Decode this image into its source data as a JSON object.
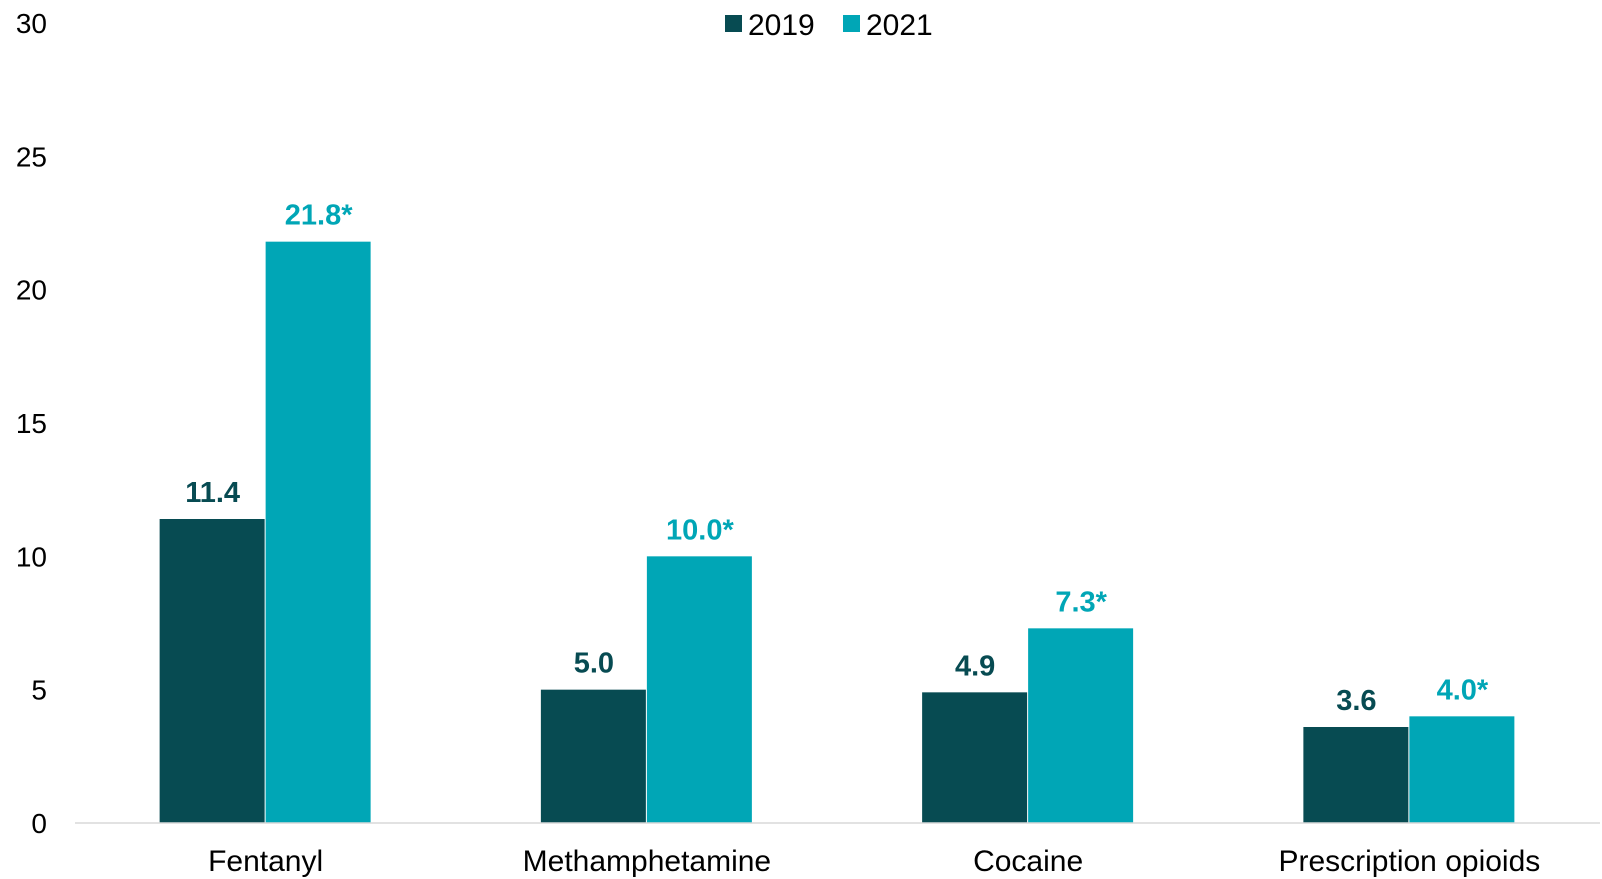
{
  "chart_data": {
    "type": "bar",
    "categories": [
      "Fentanyl",
      "Methamphetamine",
      "Cocaine",
      "Prescription opioids"
    ],
    "series": [
      {
        "name": "2019",
        "color": "#074b52",
        "values": [
          11.4,
          5.0,
          4.9,
          3.6
        ],
        "labels": [
          "11.4",
          "5.0",
          "4.9",
          "3.6"
        ]
      },
      {
        "name": "2021",
        "color": "#00a6b6",
        "values": [
          21.8,
          10.0,
          7.3,
          4.0
        ],
        "labels": [
          "21.8*",
          "10.0*",
          "7.3*",
          "4.0*"
        ]
      }
    ],
    "yticks": [
      "0",
      "5",
      "10",
      "15",
      "20",
      "25",
      "30"
    ],
    "ylim": [
      0,
      30
    ],
    "grid": false,
    "legend_position": "top-center",
    "title": "",
    "xlabel": "",
    "ylabel": ""
  }
}
